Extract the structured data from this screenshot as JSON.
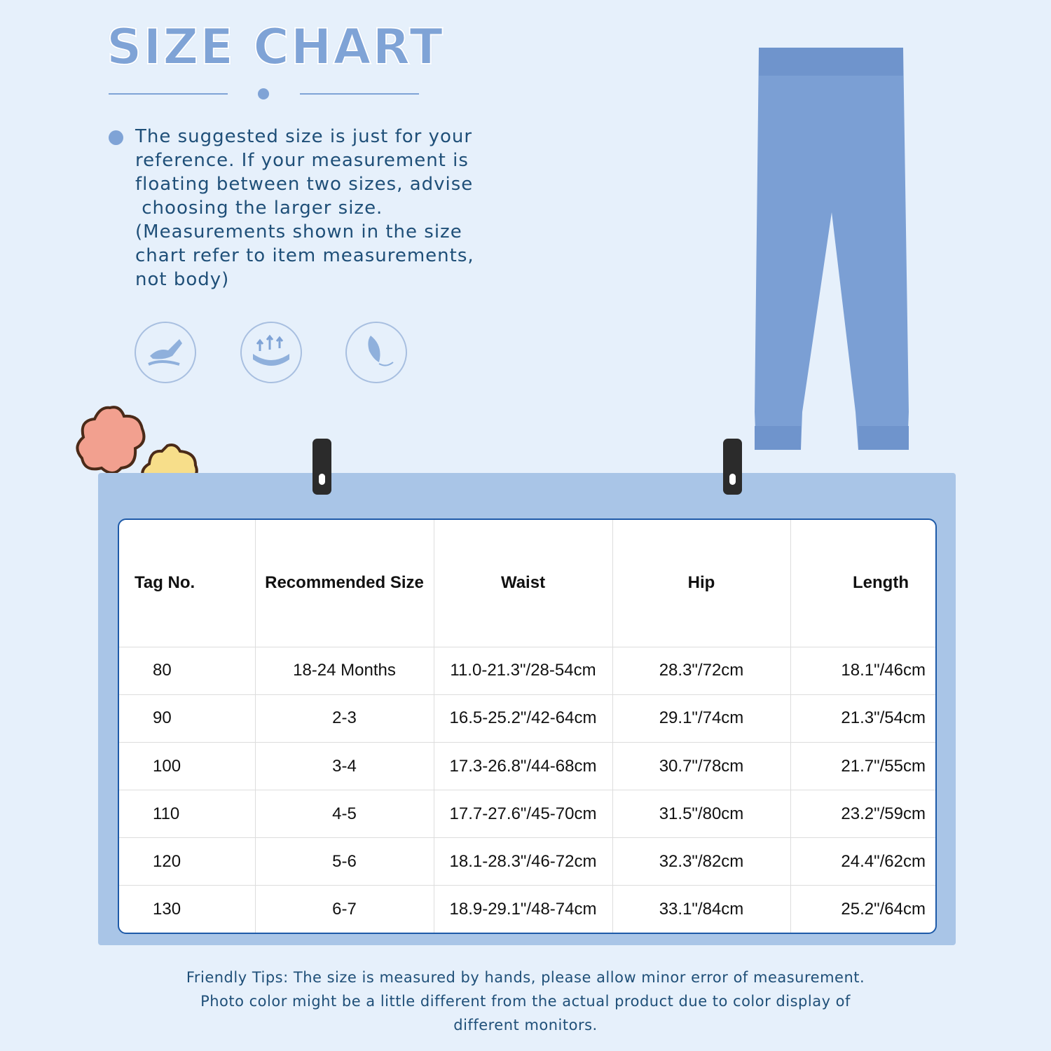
{
  "title": "SIZE CHART",
  "description": [
    "The suggested size is just for your",
    "reference. If your measurement is",
    "floating between two sizes, advise",
    " choosing the larger size.",
    "(Measurements shown in the size",
    "chart refer to item measurements,",
    "not body)"
  ],
  "feature_icons": [
    "hand-soft-icon",
    "breathable-arrows-icon",
    "feather-light-icon"
  ],
  "product_color": "#7b9fd4",
  "table": {
    "headers": [
      "Tag No.",
      "Recommended Size",
      "Waist",
      "Hip",
      "Length"
    ],
    "rows": [
      [
        "80",
        "18-24 Months",
        "11.0-21.3\"/28-54cm",
        "28.3\"/72cm",
        "18.1\"/46cm"
      ],
      [
        "90",
        "2-3",
        "16.5-25.2\"/42-64cm",
        "29.1\"/74cm",
        "21.3\"/54cm"
      ],
      [
        "100",
        "3-4",
        "17.3-26.8\"/44-68cm",
        "30.7\"/78cm",
        "21.7\"/55cm"
      ],
      [
        "110",
        "4-5",
        "17.7-27.6\"/45-70cm",
        "31.5\"/80cm",
        "23.2\"/59cm"
      ],
      [
        "120",
        "5-6",
        "18.1-28.3\"/46-72cm",
        "32.3\"/82cm",
        "24.4\"/62cm"
      ],
      [
        "130",
        "6-7",
        "18.9-29.1\"/48-74cm",
        "33.1\"/84cm",
        "25.2\"/64cm"
      ]
    ]
  },
  "footer": [
    "Friendly Tips: The size is measured by hands, please allow minor error of measurement.",
    "Photo color might be a little different from the actual product due to color display of",
    "different monitors."
  ]
}
